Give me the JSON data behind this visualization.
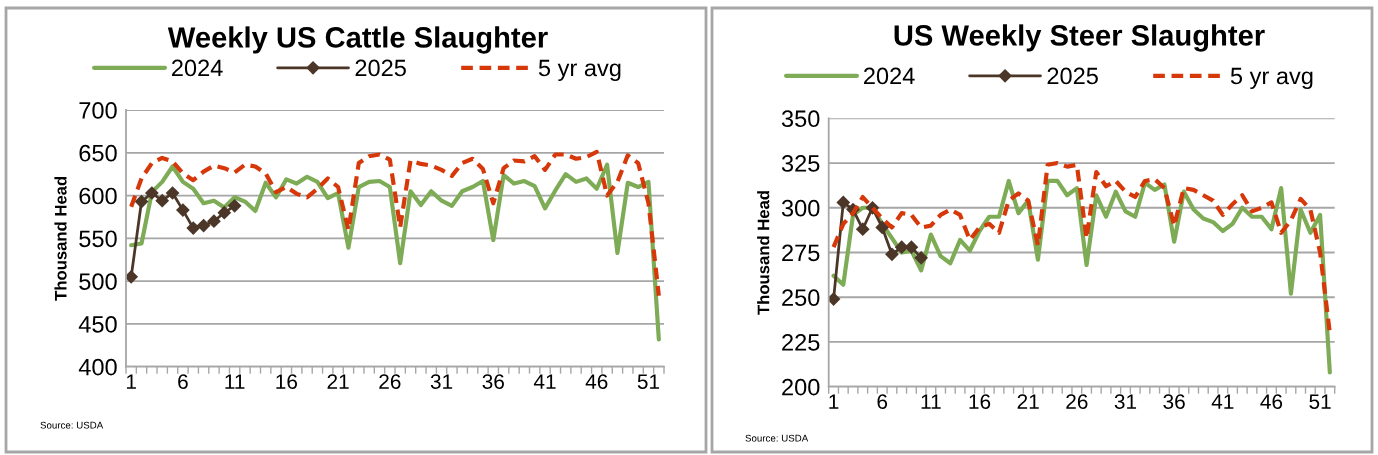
{
  "chart_data": [
    {
      "type": "line",
      "title": "Weekly US Cattle Slaughter",
      "ylabel": "Thousand Head",
      "categories": [
        "1",
        null,
        null,
        null,
        null,
        "6",
        null,
        null,
        null,
        null,
        "11",
        null,
        null,
        null,
        null,
        "16",
        null,
        null,
        null,
        null,
        "21",
        null,
        null,
        null,
        null,
        "26",
        null,
        null,
        null,
        null,
        "31",
        null,
        null,
        null,
        null,
        "36",
        null,
        null,
        null,
        null,
        "41",
        null,
        null,
        null,
        null,
        "46",
        null,
        null,
        null,
        null,
        "51",
        null
      ],
      "series": [
        {
          "name": "2024",
          "color": "#7eab55",
          "line_style": "solid",
          "marker": "none",
          "values": [
            542,
            544,
            604,
            616,
            634,
            616,
            608,
            591,
            594,
            586,
            598,
            593,
            582,
            615,
            598,
            619,
            614,
            622,
            616,
            597,
            603,
            539,
            610,
            616,
            617,
            610,
            521,
            605,
            589,
            605,
            594,
            588,
            605,
            610,
            617,
            548,
            624,
            614,
            617,
            611,
            585,
            606,
            625,
            616,
            620,
            608,
            636,
            533,
            615,
            610,
            616,
            432
          ]
        },
        {
          "name": "2025",
          "color": "#4b3628",
          "line_style": "solid",
          "marker": "diamond",
          "values": [
            505,
            593,
            603,
            594,
            603,
            583,
            562,
            565,
            570,
            580,
            588,
            null,
            null,
            null,
            null,
            null,
            null,
            null,
            null,
            null,
            null,
            null,
            null,
            null,
            null,
            null,
            null,
            null,
            null,
            null,
            null,
            null,
            null,
            null,
            null,
            null,
            null,
            null,
            null,
            null,
            null,
            null,
            null,
            null,
            null,
            null,
            null,
            null,
            null,
            null,
            null,
            null
          ]
        },
        {
          "name": "5 yr avg",
          "color": "#d6380a",
          "line_style": "dashed",
          "marker": "none",
          "values": [
            587,
            620,
            638,
            644,
            640,
            626,
            618,
            628,
            635,
            632,
            627,
            636,
            634,
            626,
            604,
            610,
            602,
            598,
            608,
            620,
            610,
            560,
            638,
            646,
            648,
            642,
            563,
            641,
            637,
            635,
            630,
            623,
            638,
            643,
            631,
            591,
            632,
            641,
            640,
            646,
            630,
            648,
            648,
            643,
            645,
            651,
            600,
            616,
            647,
            638,
            591,
            483
          ]
        }
      ],
      "ylim": [
        400,
        700
      ],
      "yticks": [
        400,
        450,
        500,
        550,
        600,
        650,
        700
      ],
      "grid": "y",
      "legend": "top",
      "annotations": [
        "Source: USDA"
      ]
    },
    {
      "type": "line",
      "title": "US Weekly Steer Slaughter",
      "ylabel": "Thousand Head",
      "categories": [
        "1",
        null,
        null,
        null,
        null,
        "6",
        null,
        null,
        null,
        null,
        "11",
        null,
        null,
        null,
        null,
        "16",
        null,
        null,
        null,
        null,
        "21",
        null,
        null,
        null,
        null,
        "26",
        null,
        null,
        null,
        null,
        "31",
        null,
        null,
        null,
        null,
        "36",
        null,
        null,
        null,
        null,
        "41",
        null,
        null,
        null,
        null,
        "46",
        null,
        null,
        null,
        null,
        "51",
        null
      ],
      "series": [
        {
          "name": "2024",
          "color": "#7eab55",
          "line_style": "solid",
          "marker": "none",
          "values": [
            262,
            257,
            296,
            300,
            300,
            291,
            283,
            275,
            276,
            265,
            285,
            273,
            269,
            282,
            276,
            287,
            295,
            295,
            315,
            297,
            304,
            271,
            315,
            315,
            307,
            311,
            268,
            307,
            295,
            309,
            298,
            295,
            314,
            310,
            313,
            281,
            309,
            299,
            294,
            292,
            287,
            291,
            300,
            295,
            295,
            288,
            311,
            252,
            299,
            286,
            296,
            208
          ]
        },
        {
          "name": "2025",
          "color": "#4b3628",
          "line_style": "solid",
          "marker": "diamond",
          "values": [
            249,
            303,
            299,
            288,
            300,
            289,
            274,
            278,
            278,
            272,
            null,
            null,
            null,
            null,
            null,
            null,
            null,
            null,
            null,
            null,
            null,
            null,
            null,
            null,
            null,
            null,
            null,
            null,
            null,
            null,
            null,
            null,
            null,
            null,
            null,
            null,
            null,
            null,
            null,
            null,
            null,
            null,
            null,
            null,
            null,
            null,
            null,
            null,
            null,
            null,
            null,
            null
          ]
        },
        {
          "name": "5 yr avg",
          "color": "#d6380a",
          "line_style": "dashed",
          "marker": "none",
          "values": [
            278,
            291,
            297,
            306,
            300,
            294,
            289,
            297,
            296,
            289,
            290,
            296,
            299,
            296,
            282,
            289,
            291,
            286,
            304,
            308,
            304,
            279,
            324,
            325,
            323,
            324,
            283,
            320,
            312,
            315,
            309,
            306,
            315,
            316,
            311,
            290,
            311,
            310,
            307,
            304,
            296,
            302,
            307,
            298,
            300,
            303,
            286,
            293,
            305,
            299,
            275,
            230
          ]
        }
      ],
      "ylim": [
        200,
        350
      ],
      "yticks": [
        200,
        225,
        250,
        275,
        300,
        325,
        350
      ],
      "grid": "y",
      "legend": "top",
      "annotations": [
        "Source: USDA"
      ]
    }
  ]
}
